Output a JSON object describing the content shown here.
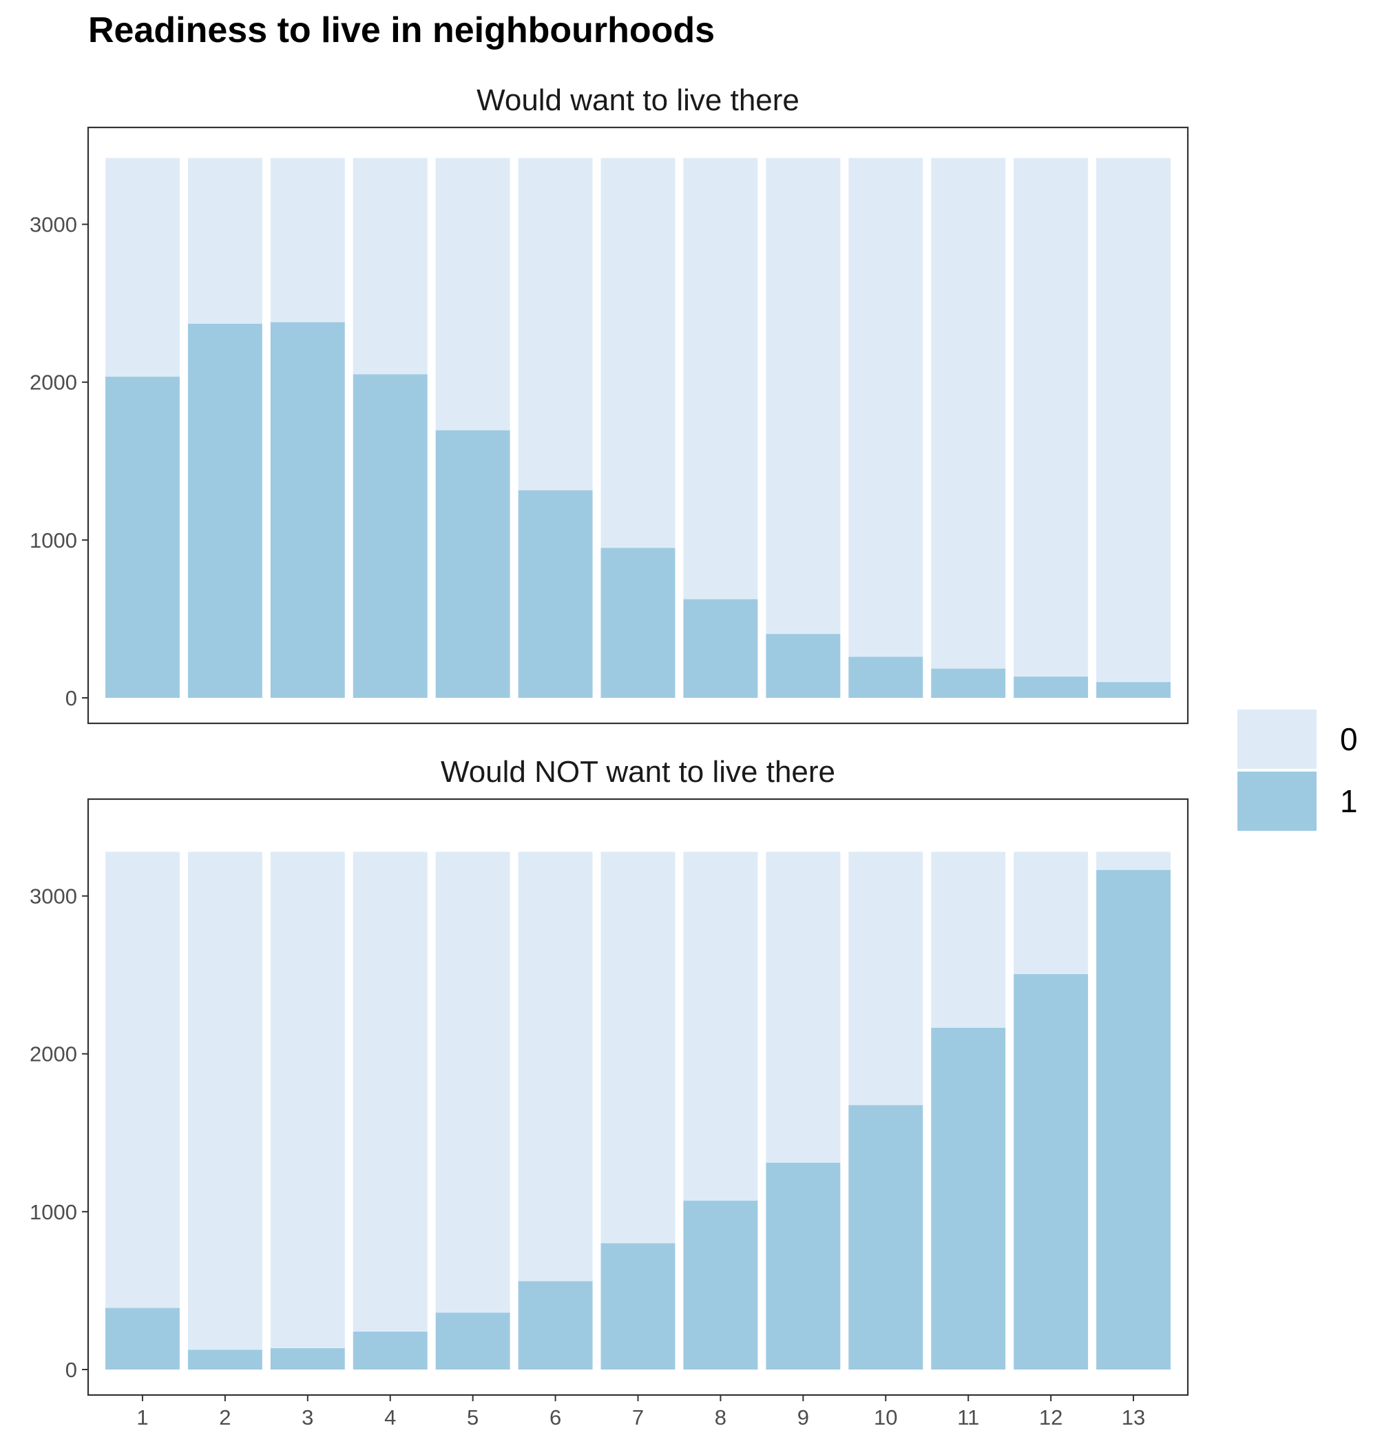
{
  "chart_data": {
    "type": "bar",
    "stacked": true,
    "title": "Readiness to live in neighbourhoods",
    "xlabel": "",
    "ylabel": "",
    "categories": [
      "1",
      "2",
      "3",
      "4",
      "5",
      "6",
      "7",
      "8",
      "9",
      "10",
      "11",
      "12",
      "13"
    ],
    "ylim": [
      0,
      3570
    ],
    "yticks": [
      0,
      1000,
      2000,
      3000
    ],
    "grid": false,
    "legend": {
      "position": "right",
      "entries": [
        "0",
        "1"
      ]
    },
    "colors": {
      "0": "#deebf7",
      "1": "#9ecae1",
      "panel_border": "#333333",
      "background": "#ffffff"
    },
    "panels": [
      {
        "strip_title": "Would want to live there",
        "total": 3420,
        "series": [
          {
            "name": "0",
            "values": [
              1385,
              1050,
              1040,
              1370,
              1725,
              2105,
              2470,
              2795,
              3015,
              3160,
              3235,
              3285,
              3320
            ]
          },
          {
            "name": "1",
            "values": [
              2035,
              2370,
              2380,
              2050,
              1695,
              1315,
              950,
              625,
              405,
              260,
              185,
              135,
              100
            ]
          }
        ]
      },
      {
        "strip_title": "Would NOT want to live there",
        "total": 3280,
        "series": [
          {
            "name": "0",
            "values": [
              2890,
              3155,
              3145,
              3040,
              2920,
              2720,
              2480,
              2210,
              1970,
              1605,
              1115,
              775,
              115
            ]
          },
          {
            "name": "1",
            "values": [
              390,
              125,
              135,
              240,
              360,
              560,
              800,
              1070,
              1310,
              1675,
              2165,
              2505,
              3165
            ]
          }
        ]
      }
    ]
  }
}
